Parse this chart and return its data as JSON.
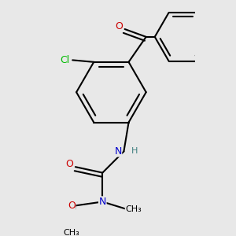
{
  "background_color": "#e8e8e8",
  "atom_colors": {
    "C": "#000000",
    "O": "#cc0000",
    "N": "#0000cc",
    "Cl": "#00bb00",
    "H": "#408080"
  },
  "bond_color": "#000000",
  "bond_width": 1.5,
  "font_size_atom": 9,
  "font_size_small": 8
}
